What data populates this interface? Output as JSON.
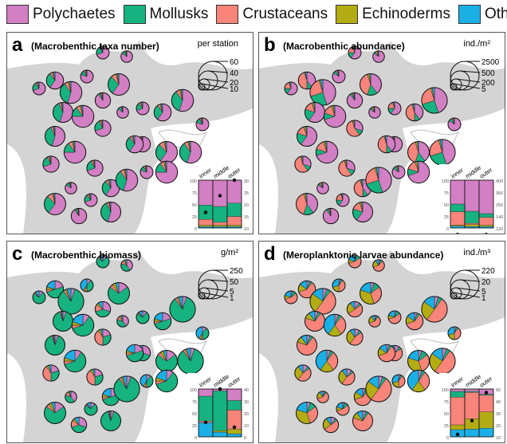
{
  "legend": [
    {
      "label": "Polychaetes",
      "color": "#d27fc4"
    },
    {
      "label": "Mollusks",
      "color": "#16b27f"
    },
    {
      "label": "Crustaceans",
      "color": "#f8847a"
    },
    {
      "label": "Echinoderms",
      "color": "#b3ac12"
    },
    {
      "label": "Others",
      "color": "#1ab0e6"
    }
  ],
  "chart_data": [
    {
      "type": "pie-map",
      "panel": "a",
      "title": "(Macrobenthic taxa number)",
      "unit": "per station",
      "size_legend": [
        "60",
        "40",
        "20",
        "10"
      ],
      "inset": {
        "type": "stacked-bar",
        "categories": [
          "inner",
          "middle",
          "outer"
        ],
        "left_ticks": [
          "100",
          "75",
          "50",
          "25",
          "0"
        ],
        "right_ticks": [
          "30",
          "25",
          "20",
          "15",
          "10"
        ],
        "series": [
          [
            3,
            3,
            3
          ],
          [
            3,
            3,
            3
          ],
          [
            12,
            6,
            18
          ],
          [
            30,
            33,
            28
          ],
          [
            52,
            55,
            48
          ]
        ],
        "dots": [
          16.5,
          23.5,
          30
        ]
      },
      "pies": [
        [
          14,
          70,
          20,
          5,
          2,
          3
        ],
        [
          10,
          60,
          30,
          5,
          2,
          3
        ],
        [
          18,
          55,
          35,
          6,
          2,
          2
        ],
        [
          12,
          80,
          12,
          4,
          2,
          2
        ],
        [
          8,
          90,
          5,
          3,
          1,
          1
        ],
        [
          16,
          60,
          28,
          8,
          2,
          2
        ],
        [
          20,
          55,
          38,
          4,
          1,
          2
        ],
        [
          12,
          75,
          15,
          6,
          2,
          2
        ],
        [
          10,
          70,
          22,
          4,
          2,
          2
        ],
        [
          8,
          85,
          10,
          3,
          1,
          1
        ]
      ]
    },
    {
      "type": "pie-map",
      "panel": "b",
      "title": "(Macrobenthic abundance)",
      "unit": "ind./m²",
      "size_legend": [
        "2500",
        "500",
        "200",
        "5"
      ],
      "inset": {
        "type": "stacked-bar",
        "categories": [
          "inner",
          "middle",
          "outer"
        ],
        "left_ticks": [
          "100",
          "75",
          "50",
          "25",
          "0"
        ],
        "right_ticks": [
          "400",
          "350",
          "250",
          "140",
          "120"
        ],
        "series": [
          [
            4,
            3,
            3
          ],
          [
            2,
            4,
            3
          ],
          [
            28,
            3,
            16
          ],
          [
            16,
            25,
            8
          ],
          [
            50,
            65,
            70
          ]
        ],
        "dots": [
          82,
          27,
          82
        ]
      },
      "pies": [
        [
          14,
          60,
          15,
          20,
          2,
          3
        ],
        [
          10,
          40,
          10,
          45,
          2,
          3
        ],
        [
          22,
          45,
          25,
          25,
          2,
          3
        ],
        [
          12,
          85,
          8,
          4,
          1,
          2
        ],
        [
          8,
          90,
          5,
          3,
          1,
          1
        ],
        [
          16,
          40,
          15,
          40,
          3,
          2
        ],
        [
          20,
          60,
          20,
          15,
          3,
          2
        ],
        [
          12,
          70,
          10,
          15,
          3,
          2
        ],
        [
          10,
          30,
          10,
          55,
          3,
          2
        ],
        [
          8,
          85,
          5,
          5,
          3,
          2
        ]
      ]
    },
    {
      "type": "pie-map",
      "panel": "c",
      "title": "(Macrobenthic biomass)",
      "unit": "g/m²",
      "size_legend": [
        "250",
        "50",
        "5",
        "1"
      ],
      "inset": {
        "type": "stacked-bar",
        "categories": [
          "inner",
          "middle",
          "outer"
        ],
        "left_ticks": [
          "100",
          "75",
          "50",
          "25",
          "0"
        ],
        "right_ticks": [
          "40",
          "30",
          "20",
          "10",
          "0"
        ],
        "series": [
          [
            30,
            10,
            6
          ],
          [
            0,
            3,
            10
          ],
          [
            3,
            0,
            40
          ],
          [
            52,
            83,
            20
          ],
          [
            15,
            4,
            24
          ]
        ],
        "dots": [
          12,
          40,
          8
        ]
      },
      "pies": [
        [
          14,
          10,
          75,
          3,
          2,
          10
        ],
        [
          10,
          20,
          50,
          5,
          5,
          20
        ],
        [
          22,
          5,
          85,
          3,
          2,
          5
        ],
        [
          12,
          10,
          40,
          5,
          5,
          40
        ],
        [
          8,
          30,
          40,
          15,
          5,
          10
        ],
        [
          16,
          15,
          70,
          5,
          5,
          5
        ],
        [
          20,
          5,
          90,
          2,
          1,
          2
        ],
        [
          12,
          10,
          60,
          5,
          5,
          20
        ],
        [
          10,
          20,
          30,
          40,
          5,
          5
        ],
        [
          8,
          40,
          40,
          10,
          5,
          5
        ]
      ]
    },
    {
      "type": "pie-map",
      "panel": "d",
      "title": "(Meroplanktonic larvae abundance)",
      "unit": "ind./m³",
      "size_legend": [
        "220",
        "20",
        "5",
        "1"
      ],
      "inset": {
        "type": "stacked-bar",
        "categories": [
          "inner",
          "middle",
          "outer"
        ],
        "left_ticks": [
          "100",
          "75",
          "50",
          "25",
          "0"
        ],
        "right_ticks": [
          "50",
          "40",
          "30",
          "20",
          "10"
        ],
        "series": [
          [
            15,
            16,
            18
          ],
          [
            10,
            22,
            34
          ],
          [
            58,
            55,
            35
          ],
          [
            12,
            2,
            2
          ],
          [
            5,
            5,
            11
          ]
        ],
        "dots": [
          12,
          23.5,
          47
        ]
      },
      "pies": [
        [
          14,
          5,
          10,
          55,
          10,
          20
        ],
        [
          10,
          5,
          5,
          60,
          15,
          15
        ],
        [
          22,
          5,
          5,
          50,
          25,
          15
        ],
        [
          12,
          5,
          5,
          40,
          20,
          30
        ],
        [
          8,
          10,
          5,
          50,
          25,
          10
        ],
        [
          16,
          5,
          10,
          30,
          35,
          20
        ],
        [
          20,
          5,
          5,
          70,
          10,
          10
        ],
        [
          12,
          5,
          5,
          30,
          20,
          40
        ],
        [
          10,
          10,
          5,
          45,
          30,
          10
        ],
        [
          8,
          5,
          5,
          60,
          20,
          10
        ]
      ]
    }
  ]
}
